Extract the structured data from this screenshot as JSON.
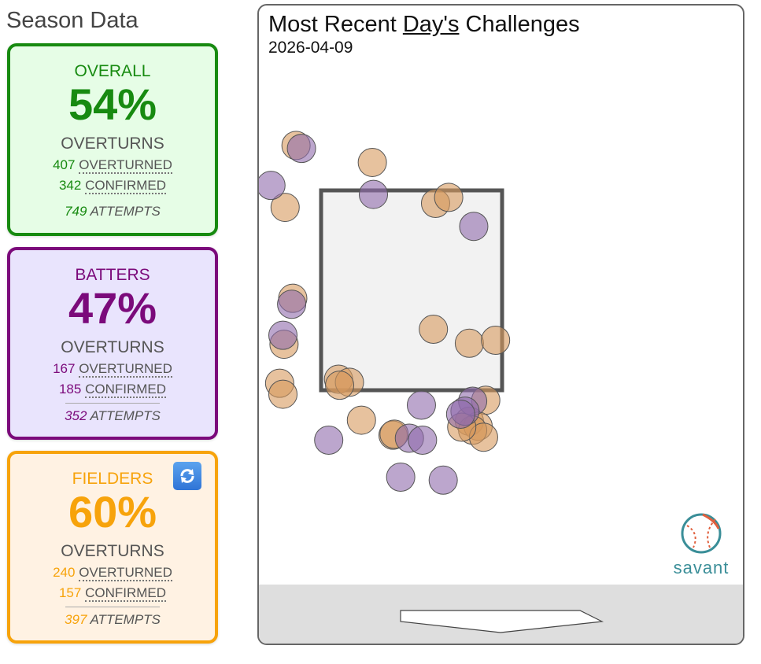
{
  "season_title": "Season Data",
  "cards": {
    "overall": {
      "label": "OVERALL",
      "pct": "54%",
      "overturns_label": "OVERTURNS",
      "overturned_num": "407",
      "overturned_word": "OVERTURNED",
      "confirmed_num": "342",
      "confirmed_word": "CONFIRMED",
      "attempts_num": "749",
      "attempts_word": "ATTEMPTS",
      "color": "#178a10"
    },
    "batters": {
      "label": "BATTERS",
      "pct": "47%",
      "overturns_label": "OVERTURNS",
      "overturned_num": "167",
      "overturned_word": "OVERTURNED",
      "confirmed_num": "185",
      "confirmed_word": "CONFIRMED",
      "attempts_num": "352",
      "attempts_word": "ATTEMPTS",
      "color": "#7b0a7b"
    },
    "fielders": {
      "label": "FIELDERS",
      "pct": "60%",
      "overturns_label": "OVERTURNS",
      "overturned_num": "240",
      "overturned_word": "OVERTURNED",
      "confirmed_num": "157",
      "confirmed_word": "CONFIRMED",
      "attempts_num": "397",
      "attempts_word": "ATTEMPTS",
      "color": "#f7a30b",
      "refresh_icon": "refresh-icon"
    }
  },
  "panel": {
    "title_pre": "Most Recent ",
    "title_day": "Day's",
    "title_post": " Challenges",
    "date": "2026-04-09",
    "logo_text": "savant"
  },
  "chart_data": {
    "type": "scatter",
    "title": "Most Recent Day's Challenges",
    "subtitle": "2026-04-09",
    "series": [
      {
        "color": "#d79a5e",
        "points": [
          [
            -1.06,
            3.95
          ],
          [
            -1.16,
            3.33
          ],
          [
            -0.67,
            1.61
          ],
          [
            -0.57,
            1.58
          ],
          [
            0.2,
            2.11
          ],
          [
            0.22,
            3.37
          ],
          [
            -0.36,
            3.78
          ],
          [
            0.53,
            1.97
          ],
          [
            0.68,
            1.4
          ],
          [
            0.53,
            1.19
          ],
          [
            0.61,
            1.14
          ],
          [
            0.56,
            1.1
          ],
          [
            0.66,
            1.03
          ],
          [
            0.34,
            3.43
          ],
          [
            0.46,
            1.13
          ],
          [
            0.77,
            2.0
          ]
        ],
        "more_points": [
          [
            -1.21,
            1.57
          ],
          [
            -0.66,
            1.55
          ],
          [
            -1.18,
            1.46
          ],
          [
            -0.17,
            1.05
          ],
          [
            -0.16,
            1.06
          ],
          [
            -1.17,
            1.96
          ],
          [
            -1.09,
            2.42
          ],
          [
            -0.46,
            1.2
          ]
        ]
      },
      {
        "color": "#8f6bab",
        "points": [
          [
            -1.01,
            3.92
          ],
          [
            -1.29,
            3.55
          ],
          [
            -0.35,
            3.46
          ],
          [
            0.57,
            3.14
          ],
          [
            -1.1,
            2.36
          ],
          [
            -1.18,
            2.05
          ],
          [
            0.56,
            1.39
          ],
          [
            -0.76,
            1.0
          ],
          [
            0.09,
            1.35
          ],
          [
            -0.02,
            1.02
          ],
          [
            0.49,
            1.29
          ],
          [
            0.45,
            1.26
          ],
          [
            0.1,
            1.0
          ],
          [
            -0.1,
            0.63
          ],
          [
            0.29,
            0.6
          ]
        ]
      }
    ],
    "strike_zone": {
      "x": [
        -0.83,
        0.83
      ],
      "y": [
        1.5,
        3.5
      ]
    }
  }
}
